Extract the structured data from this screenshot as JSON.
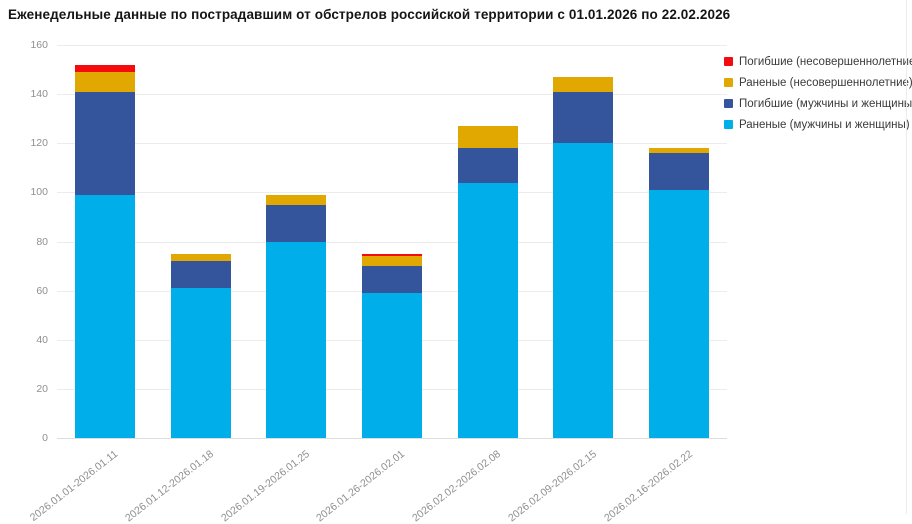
{
  "title": "Еженедельные данные по пострадавшим от обстрелов российской территории с 01.01.2026 по 22.02.2026",
  "chart_data": {
    "type": "bar",
    "stacked": true,
    "title": "Еженедельные данные по пострадавшим от обстрелов российской территории с 01.01.2026 по 22.02.2026",
    "xlabel": "",
    "ylabel": "",
    "ylim": [
      0,
      160
    ],
    "ytick_step": 20,
    "grid": true,
    "legend_position": "top-right",
    "categories": [
      "2026.01.01-2026.01.11",
      "2026.01.12-2026.01.18",
      "2026.01.19-2026.01.25",
      "2026.01.26-2026.02.01",
      "2026.02.02-2026.02.08",
      "2026.02.09-2026.02.15",
      "2026.02.16-2026.02.22"
    ],
    "series": [
      {
        "name": "Раненые (мужчины и женщины)",
        "color": "#00aeea",
        "values": [
          99,
          61,
          80,
          59,
          104,
          120,
          101
        ]
      },
      {
        "name": "Погибшие (мужчины и женщины)",
        "color": "#34549c",
        "values": [
          42,
          11,
          15,
          11,
          14,
          21,
          15
        ]
      },
      {
        "name": "Раненые (несовершеннолетние)",
        "color": "#e0a800",
        "values": [
          8,
          3,
          4,
          4,
          9,
          6,
          2
        ]
      },
      {
        "name": "Погибшие (несовершеннолетние)",
        "color": "#f40b0e",
        "values": [
          3,
          0,
          0,
          1,
          0,
          0,
          0
        ]
      }
    ],
    "totals": [
      152,
      75,
      99,
      75,
      127,
      147,
      118
    ]
  },
  "colors": {
    "grid": "#ececec",
    "baseline": "#dedede",
    "tick_text": "#8f8f8f",
    "title_text": "#151515",
    "legend_text": "#3a3a3a",
    "background": "#ffffff"
  }
}
